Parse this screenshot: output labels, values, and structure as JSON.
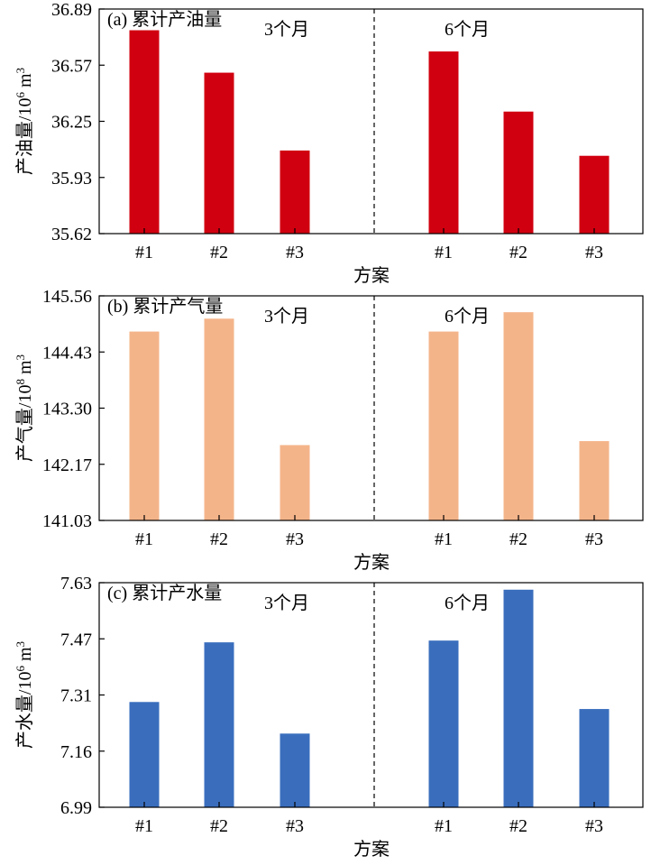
{
  "chart_data": [
    {
      "type": "bar",
      "panel_label": "(a) 累计产油量",
      "ylabel_main": "产油量/10",
      "ylabel_exp": "6",
      "ylabel_unit": " m",
      "ylabel_unit_exp": "3",
      "xlabel": "方案",
      "yticks": [
        "35.62",
        "35.93",
        "36.25",
        "36.57",
        "36.89"
      ],
      "ylim": [
        35.62,
        36.89
      ],
      "color": "#d10010",
      "groups": [
        {
          "label": "3个月",
          "categories": [
            "#1",
            "#2",
            "#3"
          ],
          "values": [
            36.77,
            36.53,
            36.09
          ]
        },
        {
          "label": "6个月",
          "categories": [
            "#1",
            "#2",
            "#3"
          ],
          "values": [
            36.65,
            36.31,
            36.06
          ]
        }
      ]
    },
    {
      "type": "bar",
      "panel_label": "(b) 累计产气量",
      "ylabel_main": "产气量/10",
      "ylabel_exp": "8",
      "ylabel_unit": " m",
      "ylabel_unit_exp": "3",
      "xlabel": "方案",
      "yticks": [
        "141.03",
        "142.17",
        "143.30",
        "144.43",
        "145.56"
      ],
      "ylim": [
        141.03,
        145.56
      ],
      "color": "#f4b48a",
      "groups": [
        {
          "label": "3个月",
          "categories": [
            "#1",
            "#2",
            "#3"
          ],
          "values": [
            144.84,
            145.1,
            142.55
          ]
        },
        {
          "label": "6个月",
          "categories": [
            "#1",
            "#2",
            "#3"
          ],
          "values": [
            144.84,
            145.23,
            142.63
          ]
        }
      ]
    },
    {
      "type": "bar",
      "panel_label": "(c) 累计产水量",
      "ylabel_main": "产水量/10",
      "ylabel_exp": "6",
      "ylabel_unit": " m",
      "ylabel_unit_exp": "3",
      "xlabel": "方案",
      "yticks": [
        "6.99",
        "7.16",
        "7.31",
        "7.47",
        "7.63"
      ],
      "ylim": [
        6.99,
        7.63
      ],
      "color": "#3a6ebd",
      "groups": [
        {
          "label": "3个月",
          "categories": [
            "#1",
            "#2",
            "#3"
          ],
          "values": [
            7.29,
            7.46,
            7.2
          ]
        },
        {
          "label": "6个月",
          "categories": [
            "#1",
            "#2",
            "#3"
          ],
          "values": [
            7.465,
            7.61,
            7.27
          ]
        }
      ]
    }
  ]
}
